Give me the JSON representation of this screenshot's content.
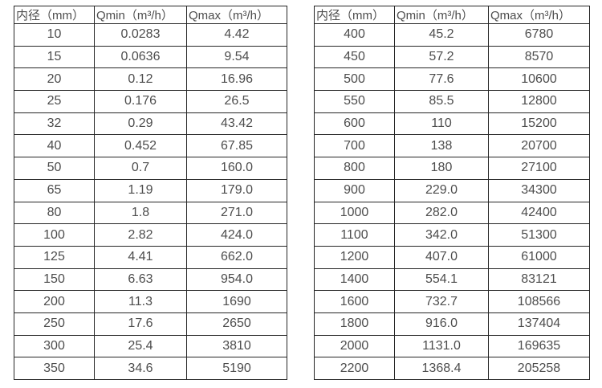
{
  "page": {
    "background": "#ffffff",
    "text_color": "#4d4d4d",
    "border_color": "#262626"
  },
  "chart_data": [
    {
      "type": "table",
      "title": "",
      "columns": [
        "内径（mm）",
        "Qmin（m³/h）",
        "Qmax（m³/h）"
      ],
      "rows": [
        [
          "10",
          "0.0283",
          "4.42"
        ],
        [
          "15",
          "0.0636",
          "9.54"
        ],
        [
          "20",
          "0.12",
          "16.96"
        ],
        [
          "25",
          "0.176",
          "26.5"
        ],
        [
          "32",
          "0.29",
          "43.42"
        ],
        [
          "40",
          "0.452",
          "67.85"
        ],
        [
          "50",
          "0.7",
          "160.0"
        ],
        [
          "65",
          "1.19",
          "179.0"
        ],
        [
          "80",
          "1.8",
          "271.0"
        ],
        [
          "100",
          "2.82",
          "424.0"
        ],
        [
          "125",
          "4.41",
          "662.0"
        ],
        [
          "150",
          "6.63",
          "954.0"
        ],
        [
          "200",
          "11.3",
          "1690"
        ],
        [
          "250",
          "17.6",
          "2650"
        ],
        [
          "300",
          "25.4",
          "3810"
        ],
        [
          "350",
          "34.6",
          "5190"
        ]
      ]
    },
    {
      "type": "table",
      "title": "",
      "columns": [
        "内径（mm）",
        "Qmin（m³/h）",
        "Qmax（m³/h）"
      ],
      "rows": [
        [
          "400",
          "45.2",
          "6780"
        ],
        [
          "450",
          "57.2",
          "8570"
        ],
        [
          "500",
          "77.6",
          "10600"
        ],
        [
          "550",
          "85.5",
          "12800"
        ],
        [
          "600",
          "110",
          "15200"
        ],
        [
          "700",
          "138",
          "20700"
        ],
        [
          "800",
          "180",
          "27100"
        ],
        [
          "900",
          "229.0",
          "34300"
        ],
        [
          "1000",
          "282.0",
          "42400"
        ],
        [
          "1100",
          "342.0",
          "51300"
        ],
        [
          "1200",
          "407.0",
          "61000"
        ],
        [
          "1400",
          "554.1",
          "83121"
        ],
        [
          "1600",
          "732.7",
          "108566"
        ],
        [
          "1800",
          "916.0",
          "137404"
        ],
        [
          "2000",
          "1131.0",
          "169635"
        ],
        [
          "2200",
          "1368.4",
          "205258"
        ]
      ]
    }
  ]
}
